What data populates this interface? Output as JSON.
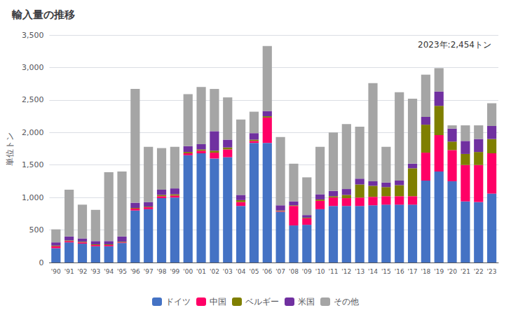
{
  "chart_data": {
    "type": "bar",
    "title": "輸入量の推移",
    "ylabel": "単位トン",
    "annotation": "2023年:2,454トン",
    "categories": [
      "'90",
      "'91",
      "'92",
      "'93",
      "'94",
      "'95",
      "'96",
      "'97",
      "'98",
      "'99",
      "'00",
      "'01",
      "'02",
      "'03",
      "'04",
      "'05",
      "'06",
      "'07",
      "'08",
      "'09",
      "'10",
      "'11",
      "'12",
      "'13",
      "'14",
      "'15",
      "'16",
      "'17",
      "'18",
      "'19",
      "'20",
      "'21",
      "'22",
      "'23"
    ],
    "series": [
      {
        "name": "ドイツ",
        "color": "#4472C4",
        "values": [
          220,
          310,
          290,
          250,
          250,
          300,
          800,
          820,
          990,
          1000,
          1650,
          1680,
          1600,
          1620,
          870,
          1840,
          1840,
          780,
          570,
          580,
          820,
          870,
          870,
          870,
          880,
          890,
          890,
          890,
          1260,
          1400,
          1250,
          940,
          930,
          1060
        ]
      },
      {
        "name": "中国",
        "color": "#FF0066",
        "values": [
          30,
          20,
          20,
          20,
          20,
          10,
          30,
          30,
          30,
          30,
          30,
          40,
          90,
          120,
          60,
          30,
          390,
          10,
          300,
          100,
          130,
          130,
          120,
          130,
          130,
          130,
          130,
          130,
          430,
          560,
          480,
          560,
          570,
          620
        ]
      },
      {
        "name": "ベルギー",
        "color": "#7F7F00",
        "values": [
          10,
          10,
          10,
          10,
          10,
          10,
          10,
          10,
          20,
          20,
          20,
          20,
          30,
          30,
          30,
          20,
          20,
          10,
          10,
          10,
          20,
          20,
          50,
          200,
          170,
          140,
          170,
          430,
          430,
          450,
          130,
          170,
          200,
          220
        ]
      },
      {
        "name": "米国",
        "color": "#7030A0",
        "values": [
          50,
          60,
          50,
          50,
          50,
          80,
          80,
          70,
          80,
          90,
          90,
          80,
          300,
          120,
          80,
          100,
          80,
          80,
          60,
          40,
          80,
          80,
          90,
          90,
          70,
          70,
          70,
          70,
          120,
          220,
          200,
          200,
          200,
          200
        ]
      },
      {
        "name": "その他",
        "color": "#A5A5A5",
        "values": [
          200,
          720,
          520,
          480,
          1060,
          1000,
          1750,
          850,
          640,
          640,
          800,
          880,
          650,
          650,
          1160,
          330,
          1000,
          1050,
          580,
          580,
          730,
          900,
          1000,
          800,
          1510,
          550,
          1360,
          1000,
          650,
          360,
          50,
          240,
          210,
          350
        ]
      }
    ],
    "stacked": true,
    "ylim": [
      0,
      3500
    ],
    "yticks": [
      0,
      500,
      {
        "value": 1000,
        "label": "1,000"
      },
      {
        "value": 1500,
        "label": "1,500"
      },
      {
        "value": 2000,
        "label": "2,000"
      },
      {
        "value": 2500,
        "label": "2,500"
      },
      {
        "value": 3000,
        "label": "3,000"
      },
      {
        "value": 3500,
        "label": "3,500"
      }
    ],
    "grid": true,
    "legend": "bottom"
  }
}
